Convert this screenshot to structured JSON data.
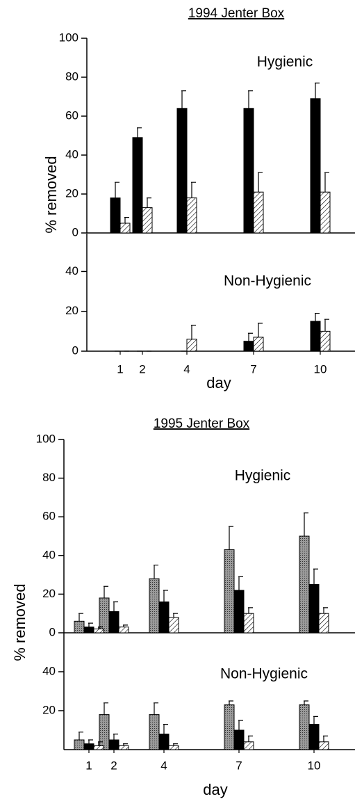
{
  "chart_data": [
    {
      "type": "bar",
      "title": "1994 Jenter Box",
      "ylabel": "% removed",
      "annotation": "Hygienic",
      "x": [
        1,
        2,
        4,
        7,
        10
      ],
      "xlim": [
        -0.5,
        11.5
      ],
      "ylim": [
        0,
        100
      ],
      "yticks": [
        0,
        20,
        40,
        60,
        80,
        100
      ],
      "series": [
        {
          "color": "#000000",
          "fill": "solid",
          "values": [
            18,
            49,
            64,
            64,
            69
          ],
          "errors": [
            8,
            5,
            9,
            9,
            8
          ]
        },
        {
          "color": "#000000",
          "fill": "hatch",
          "values": [
            5,
            13,
            18,
            21,
            21
          ],
          "errors": [
            3,
            5,
            8,
            10,
            10
          ]
        }
      ]
    },
    {
      "type": "bar",
      "annotation": "Non-Hygienic",
      "xlabel": "day",
      "x": [
        1,
        2,
        4,
        7,
        10
      ],
      "xlim": [
        -0.5,
        11.5
      ],
      "xticks": [
        1,
        2,
        4,
        7,
        10
      ],
      "ylim": [
        0,
        59
      ],
      "yticks": [
        0,
        20,
        40
      ],
      "series": [
        {
          "color": "#000000",
          "fill": "solid",
          "values": [
            0,
            0,
            0,
            5,
            15
          ],
          "errors": [
            0,
            0,
            0,
            4,
            4
          ]
        },
        {
          "color": "#000000",
          "fill": "hatch",
          "values": [
            0,
            0,
            6,
            7,
            10
          ],
          "errors": [
            0,
            0,
            7,
            7,
            6
          ]
        }
      ]
    },
    {
      "type": "bar",
      "title": "1995 Jenter Box",
      "ylabel": "% removed",
      "annotation": "Hygienic",
      "x": [
        1,
        2,
        4,
        7,
        10
      ],
      "xlim": [
        0,
        11.5
      ],
      "ylim": [
        0,
        100
      ],
      "yticks": [
        0,
        20,
        40,
        60,
        80,
        100
      ],
      "series": [
        {
          "color": "#000000",
          "fill": "stipple",
          "values": [
            6,
            18,
            28,
            43,
            50
          ],
          "errors": [
            4,
            6,
            7,
            12,
            12
          ]
        },
        {
          "color": "#000000",
          "fill": "solid",
          "values": [
            3,
            11,
            16,
            22,
            25
          ],
          "errors": [
            2,
            5,
            6,
            7,
            8
          ]
        },
        {
          "color": "#000000",
          "fill": "hatch",
          "values": [
            2,
            3,
            8,
            10,
            10
          ],
          "errors": [
            1,
            1,
            2,
            3,
            3
          ]
        }
      ]
    },
    {
      "type": "bar",
      "annotation": "Non-Hygienic",
      "xlabel": "day",
      "x": [
        1,
        2,
        4,
        7,
        10
      ],
      "xlim": [
        0,
        11.5
      ],
      "xticks": [
        1,
        2,
        4,
        7,
        10
      ],
      "ylim": [
        0,
        60
      ],
      "yticks": [
        20,
        40
      ],
      "series": [
        {
          "color": "#000000",
          "fill": "stipple",
          "values": [
            5,
            18,
            18,
            23,
            23
          ],
          "errors": [
            4,
            6,
            6,
            2,
            2
          ]
        },
        {
          "color": "#000000",
          "fill": "solid",
          "values": [
            3,
            5,
            8,
            10,
            13
          ],
          "errors": [
            2,
            3,
            5,
            5,
            4
          ]
        },
        {
          "color": "#000000",
          "fill": "hatch",
          "values": [
            2,
            2,
            2,
            4,
            4
          ],
          "errors": [
            2,
            1,
            1,
            3,
            3
          ]
        }
      ]
    }
  ]
}
